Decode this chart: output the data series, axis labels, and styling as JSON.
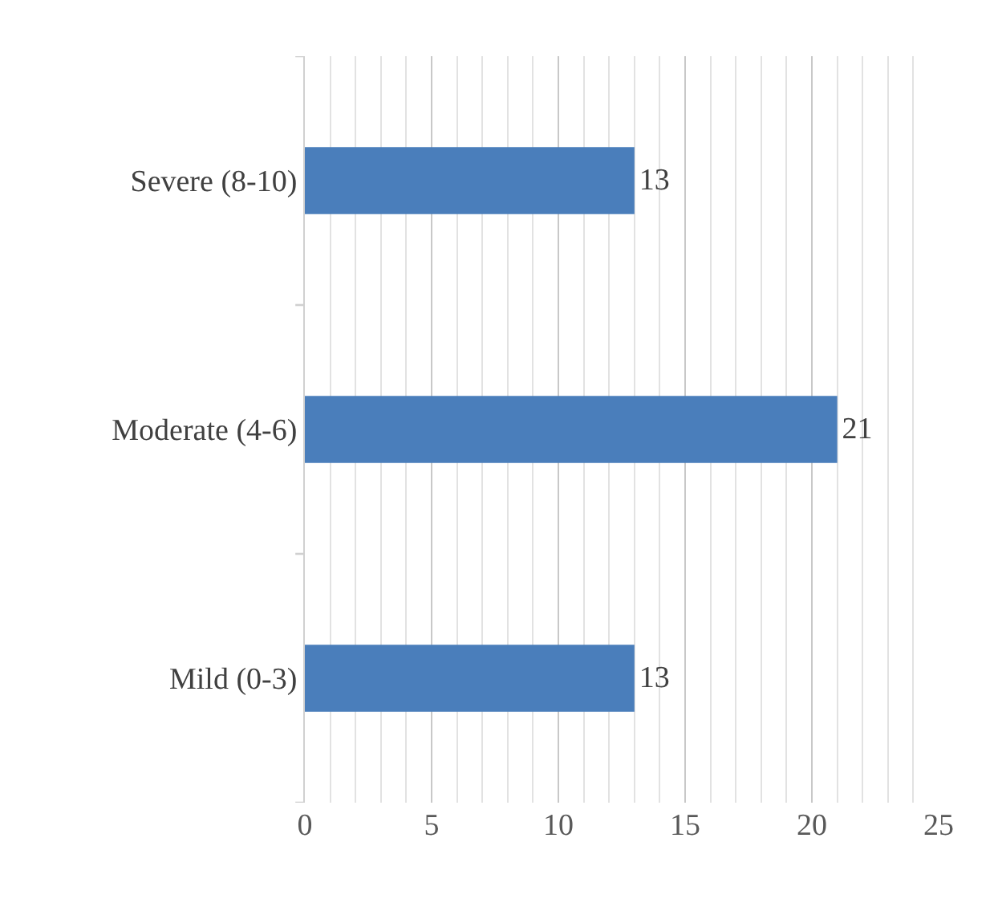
{
  "chart_data": {
    "type": "bar",
    "orientation": "horizontal",
    "categories": [
      "Severe (8-10)",
      "Moderate (4-6)",
      "Mild (0-3)"
    ],
    "values": [
      13,
      21,
      13
    ],
    "color": "#4a7ebb",
    "xlim": [
      0,
      25
    ],
    "xticks": [
      0,
      5,
      10,
      15,
      20,
      25
    ],
    "grid": "x",
    "data_labels": true
  }
}
